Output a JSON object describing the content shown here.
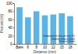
{
  "chart_data": {
    "type": "bar",
    "x_label": "Distance (mm)",
    "y_label": "Percent (%)",
    "categories": [
      "Bare",
      "6",
      "8",
      "10",
      "12",
      "15",
      "18"
    ],
    "values": [
      90,
      65,
      80,
      70,
      72,
      75,
      68
    ],
    "color": "#5ab4e5",
    "ylim": [
      0,
      100
    ],
    "yticks": [
      0,
      20,
      40,
      60,
      80,
      100
    ],
    "grid": false,
    "annotations": [
      "Comparison of stairs per unit (%)",
      "Diameter of bars 10 mm",
      "Distance 10 mm"
    ]
  }
}
